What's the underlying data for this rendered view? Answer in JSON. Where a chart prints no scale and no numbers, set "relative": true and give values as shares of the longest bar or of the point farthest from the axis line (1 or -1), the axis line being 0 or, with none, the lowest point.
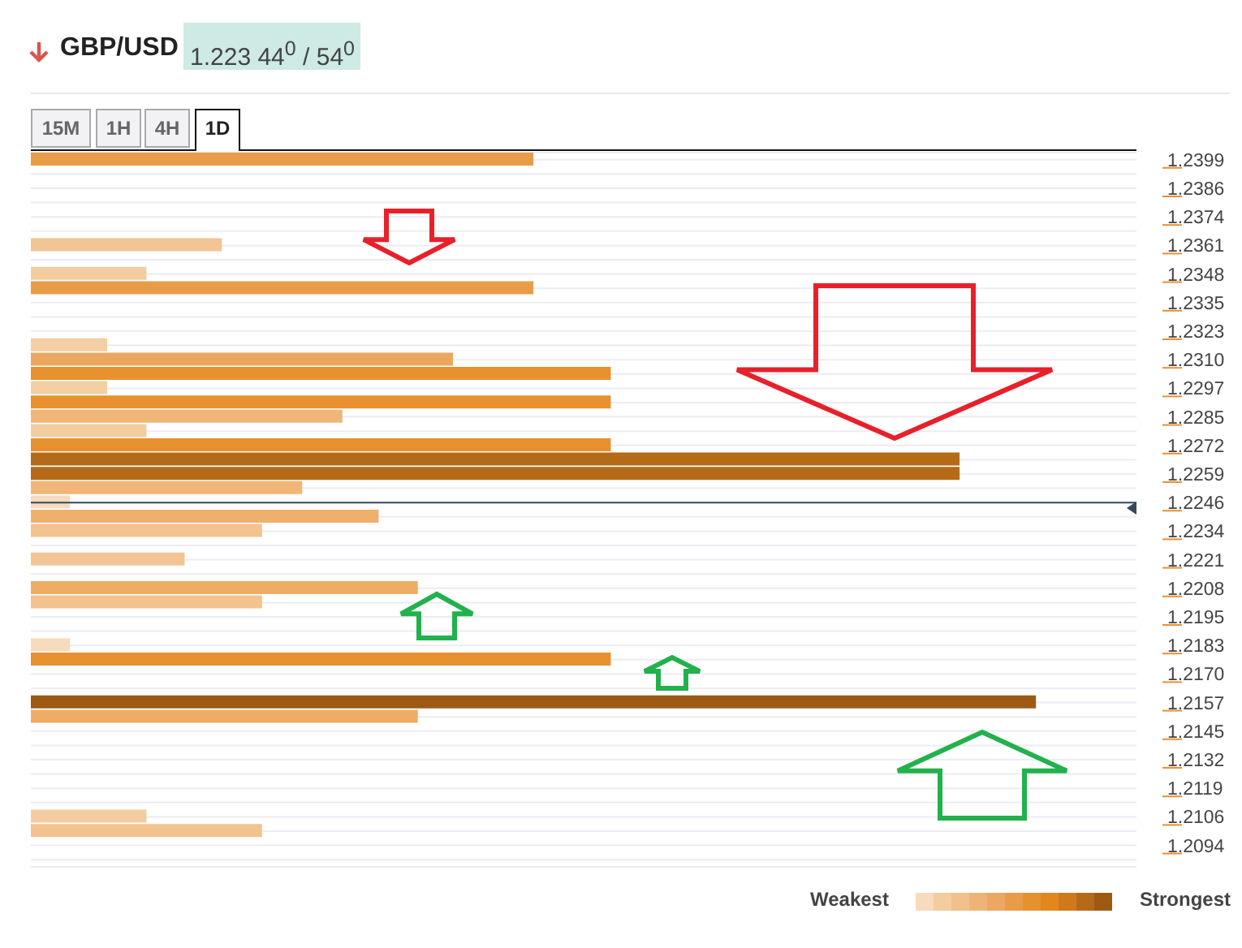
{
  "chart_data": {
    "type": "bar",
    "orientation": "horizontal",
    "relative": true,
    "title": "GBP/USD",
    "subtitle": "1.223 44$^{0}$ / 54$^{0}$",
    "categories": [
      "1.2399",
      null,
      "1.2386",
      null,
      "1.2374",
      null,
      "1.2361",
      null,
      "1.2348",
      null,
      "1.2335",
      null,
      "1.2323",
      null,
      "1.2310",
      null,
      "1.2297",
      null,
      "1.2285",
      null,
      "1.2272",
      null,
      "1.2259",
      null,
      "1.2246",
      null,
      "1.2234",
      null,
      "1.2221",
      null,
      "1.2208",
      null,
      "1.2195",
      null,
      "1.2183",
      null,
      "1.2170",
      null,
      "1.2157",
      null,
      "1.2145",
      null,
      "1.2132",
      null,
      "1.2119",
      null,
      "1.2106",
      null,
      "1.2094",
      null
    ],
    "values": [
      0.5,
      null,
      null,
      null,
      null,
      null,
      0.19,
      null,
      0.115,
      0.5,
      null,
      null,
      null,
      0.076,
      0.42,
      0.577,
      0.076,
      0.577,
      0.31,
      0.115,
      0.577,
      0.924,
      0.924,
      0.27,
      0.039,
      0.346,
      0.23,
      null,
      0.153,
      null,
      0.385,
      0.23,
      null,
      null,
      0.039,
      0.577,
      null,
      null,
      1.0,
      0.385,
      null,
      null,
      null,
      null,
      null,
      null,
      0.115,
      0.23,
      null,
      null
    ],
    "colors": [
      "#e89c48",
      null,
      null,
      null,
      null,
      null,
      "#f2c594",
      null,
      "#f3cc9f",
      "#e89c48",
      null,
      null,
      null,
      "#f3cfa3",
      "#eca75f",
      "#e8912f",
      "#f3cfa3",
      "#e8912f",
      "#efb677",
      "#f3cc9f",
      "#e8912f",
      "#b56a18",
      "#b56a18",
      "#f0b577",
      "#f6dbbd",
      "#efb06e",
      "#f2c28f",
      null,
      "#f2c594",
      null,
      "#eeac65",
      "#f2c28f",
      null,
      null,
      "#f6dbbd",
      "#e8912f",
      null,
      null,
      "#9c5a14",
      "#eeac65",
      null,
      null,
      null,
      null,
      null,
      null,
      "#f3cc9f",
      "#f2c28f",
      null,
      null
    ],
    "grid": "y",
    "ref_lines": [
      {
        "axis": "y",
        "value": "1.2246",
        "color": "#34495e"
      }
    ],
    "annotations": [
      "15M",
      "1H",
      "4H",
      "1D",
      "Weakest",
      "Strongest"
    ]
  }
}
